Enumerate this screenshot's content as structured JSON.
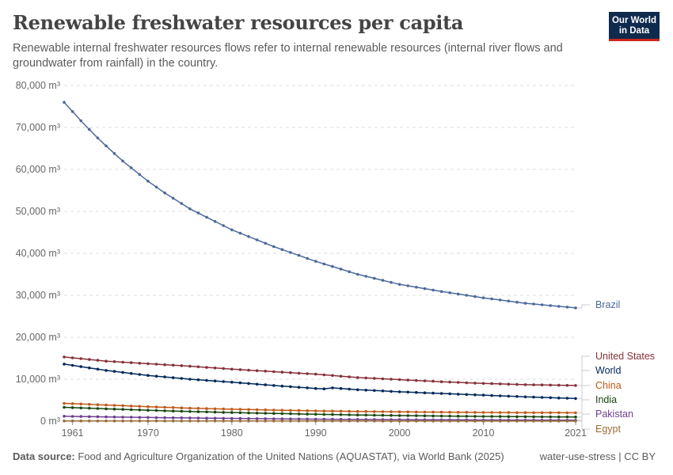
{
  "header": {
    "title": "Renewable freshwater resources per capita",
    "subtitle": "Renewable internal freshwater resources flows refer to internal renewable resources (internal river flows and groundwater from rainfall) in the country.",
    "logo_line1": "Our World",
    "logo_line2": "in Data"
  },
  "footer": {
    "source_label": "Data source:",
    "source_text": "Food and Agriculture Organization of the United Nations (AQUASTAT), via World Bank (2025)",
    "right_text": "water-use-stress | CC BY"
  },
  "chart_data": {
    "type": "line",
    "title": "Renewable freshwater resources per capita",
    "xlabel": "",
    "ylabel": "",
    "x_range": [
      1960,
      2021
    ],
    "ylim": [
      0,
      80000
    ],
    "y_ticks": [
      {
        "value": 0,
        "label": "0 m³"
      },
      {
        "value": 10000,
        "label": "10,000 m³"
      },
      {
        "value": 20000,
        "label": "20,000 m³"
      },
      {
        "value": 30000,
        "label": "30,000 m³"
      },
      {
        "value": 40000,
        "label": "40,000 m³"
      },
      {
        "value": 50000,
        "label": "50,000 m³"
      },
      {
        "value": 60000,
        "label": "60,000 m³"
      },
      {
        "value": 70000,
        "label": "70,000 m³"
      },
      {
        "value": 80000,
        "label": "80,000 m³"
      }
    ],
    "x_ticks": [
      {
        "value": 1961,
        "label": "1961"
      },
      {
        "value": 1970,
        "label": "1970"
      },
      {
        "value": 1980,
        "label": "1980"
      },
      {
        "value": 1990,
        "label": "1990"
      },
      {
        "value": 2000,
        "label": "2000"
      },
      {
        "value": 2010,
        "label": "2010"
      },
      {
        "value": 2021,
        "label": "2021"
      }
    ],
    "grid": true,
    "series": [
      {
        "name": "Brazil",
        "color": "#4c6a9c",
        "anchors": [
          [
            1960,
            76000
          ],
          [
            1961,
            73800
          ],
          [
            1962,
            71600
          ],
          [
            1963,
            69500
          ],
          [
            1964,
            67500
          ],
          [
            1965,
            65600
          ],
          [
            1966,
            63800
          ],
          [
            1967,
            62000
          ],
          [
            1968,
            60400
          ],
          [
            1969,
            58800
          ],
          [
            1970,
            57200
          ],
          [
            1972,
            54400
          ],
          [
            1975,
            50600
          ],
          [
            1980,
            45600
          ],
          [
            1985,
            41600
          ],
          [
            1990,
            38100
          ],
          [
            1995,
            35000
          ],
          [
            2000,
            32600
          ],
          [
            2005,
            30900
          ],
          [
            2010,
            29400
          ],
          [
            2015,
            28100
          ],
          [
            2021,
            27000
          ]
        ]
      },
      {
        "name": "United States",
        "color": "#883039",
        "anchors": [
          [
            1960,
            15300
          ],
          [
            1965,
            14300
          ],
          [
            1970,
            13700
          ],
          [
            1975,
            13100
          ],
          [
            1980,
            12400
          ],
          [
            1985,
            11800
          ],
          [
            1990,
            11200
          ],
          [
            1995,
            10400
          ],
          [
            2000,
            9900
          ],
          [
            2005,
            9400
          ],
          [
            2010,
            9000
          ],
          [
            2015,
            8700
          ],
          [
            2021,
            8500
          ]
        ]
      },
      {
        "name": "World",
        "color": "#00295b",
        "anchors": [
          [
            1960,
            13600
          ],
          [
            1965,
            12100
          ],
          [
            1970,
            10900
          ],
          [
            1975,
            10000
          ],
          [
            1980,
            9300
          ],
          [
            1985,
            8500
          ],
          [
            1990,
            7800
          ],
          [
            1991,
            7700
          ],
          [
            1992,
            7950
          ],
          [
            1995,
            7500
          ],
          [
            2000,
            7000
          ],
          [
            2005,
            6600
          ],
          [
            2010,
            6200
          ],
          [
            2015,
            5800
          ],
          [
            2021,
            5400
          ]
        ]
      },
      {
        "name": "China",
        "color": "#c05917",
        "anchors": [
          [
            1960,
            4250
          ],
          [
            1965,
            3850
          ],
          [
            1970,
            3450
          ],
          [
            1975,
            3100
          ],
          [
            1980,
            2850
          ],
          [
            1985,
            2650
          ],
          [
            1990,
            2450
          ],
          [
            1995,
            2320
          ],
          [
            2000,
            2220
          ],
          [
            2005,
            2150
          ],
          [
            2010,
            2080
          ],
          [
            2015,
            2030
          ],
          [
            2021,
            2000
          ]
        ]
      },
      {
        "name": "India",
        "color": "#18470f",
        "anchors": [
          [
            1960,
            3300
          ],
          [
            1965,
            2950
          ],
          [
            1970,
            2600
          ],
          [
            1975,
            2300
          ],
          [
            1980,
            2050
          ],
          [
            1985,
            1850
          ],
          [
            1990,
            1640
          ],
          [
            1995,
            1480
          ],
          [
            2000,
            1340
          ],
          [
            2005,
            1230
          ],
          [
            2010,
            1140
          ],
          [
            2015,
            1070
          ],
          [
            2021,
            1000
          ]
        ]
      },
      {
        "name": "Pakistan",
        "color": "#6d3e91",
        "anchors": [
          [
            1960,
            1170
          ],
          [
            1965,
            1020
          ],
          [
            1970,
            880
          ],
          [
            1975,
            770
          ],
          [
            1980,
            660
          ],
          [
            1985,
            560
          ],
          [
            1990,
            480
          ],
          [
            1995,
            410
          ],
          [
            2000,
            360
          ],
          [
            2005,
            320
          ],
          [
            2010,
            285
          ],
          [
            2015,
            260
          ],
          [
            2021,
            230
          ]
        ]
      },
      {
        "name": "Egypt",
        "color": "#996d39",
        "anchors": [
          [
            1960,
            60
          ],
          [
            1970,
            48
          ],
          [
            1980,
            40
          ],
          [
            1990,
            32
          ],
          [
            2000,
            27
          ],
          [
            2010,
            23
          ],
          [
            2021,
            20
          ]
        ]
      }
    ]
  }
}
